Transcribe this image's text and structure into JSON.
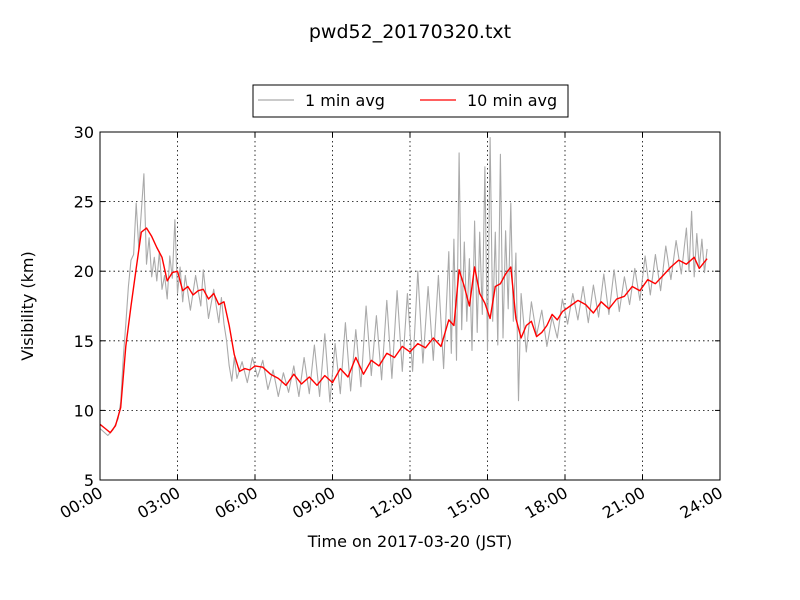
{
  "chart_data": {
    "type": "line",
    "title": "pwd52_20170320.txt",
    "xlabel": "Time on 2017-03-20 (JST)",
    "ylabel": "Visibility (km)",
    "xlim": [
      0,
      24
    ],
    "ylim": [
      5,
      30
    ],
    "x_ticks": [
      0,
      3,
      6,
      9,
      12,
      15,
      18,
      21,
      24
    ],
    "x_tick_labels": [
      "00:00",
      "03:00",
      "06:00",
      "09:00",
      "12:00",
      "15:00",
      "18:00",
      "21:00",
      "24:00"
    ],
    "y_ticks": [
      5,
      10,
      15,
      20,
      25,
      30
    ],
    "y_tick_labels": [
      "5",
      "10",
      "15",
      "20",
      "25",
      "30"
    ],
    "grid": true,
    "legend_position": "top-center",
    "series": [
      {
        "name": "1 min avg",
        "color": "#aaaaaa",
        "x": [
          0.0,
          0.3,
          0.5,
          0.7,
          0.8,
          0.9,
          1.0,
          1.1,
          1.2,
          1.3,
          1.4,
          1.5,
          1.7,
          1.8,
          1.9,
          2.0,
          2.1,
          2.2,
          2.3,
          2.4,
          2.5,
          2.6,
          2.7,
          2.8,
          2.9,
          3.0,
          3.1,
          3.2,
          3.3,
          3.5,
          3.7,
          3.9,
          4.0,
          4.2,
          4.4,
          4.6,
          4.7,
          4.8,
          4.9,
          5.0,
          5.1,
          5.2,
          5.3,
          5.5,
          5.7,
          5.9,
          6.1,
          6.3,
          6.5,
          6.7,
          6.9,
          7.1,
          7.3,
          7.5,
          7.7,
          7.9,
          8.1,
          8.3,
          8.5,
          8.7,
          8.9,
          9.1,
          9.3,
          9.5,
          9.7,
          9.9,
          10.1,
          10.3,
          10.5,
          10.7,
          10.9,
          11.1,
          11.3,
          11.5,
          11.7,
          11.9,
          12.1,
          12.3,
          12.5,
          12.7,
          12.9,
          13.1,
          13.3,
          13.5,
          13.6,
          13.7,
          13.8,
          13.9,
          14.0,
          14.1,
          14.2,
          14.3,
          14.4,
          14.5,
          14.6,
          14.7,
          14.8,
          14.9,
          15.0,
          15.1,
          15.2,
          15.3,
          15.4,
          15.5,
          15.6,
          15.7,
          15.8,
          15.9,
          16.0,
          16.1,
          16.2,
          16.3,
          16.5,
          16.7,
          16.9,
          17.1,
          17.3,
          17.5,
          17.7,
          17.9,
          18.1,
          18.3,
          18.5,
          18.7,
          18.9,
          19.1,
          19.3,
          19.5,
          19.7,
          19.9,
          20.1,
          20.3,
          20.5,
          20.7,
          20.9,
          21.1,
          21.3,
          21.5,
          21.7,
          21.9,
          22.1,
          22.3,
          22.5,
          22.7,
          22.8,
          22.9,
          23.0,
          23.1,
          23.2,
          23.3,
          23.4,
          23.5
        ],
        "y": [
          8.7,
          8.2,
          8.6,
          9.4,
          10.6,
          13.8,
          16.2,
          18.9,
          20.8,
          21.2,
          24.9,
          21.6,
          27.0,
          20.5,
          22.4,
          19.6,
          21.0,
          19.3,
          21.4,
          18.7,
          19.7,
          18.0,
          21.1,
          19.5,
          23.7,
          18.4,
          20.3,
          17.8,
          19.7,
          17.2,
          19.7,
          17.5,
          20.1,
          16.6,
          18.7,
          16.3,
          18.1,
          16.2,
          15.0,
          13.2,
          12.1,
          13.8,
          12.3,
          13.5,
          12.0,
          13.8,
          12.4,
          13.6,
          11.5,
          12.9,
          11.0,
          12.7,
          11.3,
          13.2,
          11.0,
          13.8,
          11.2,
          14.7,
          11.0,
          15.5,
          10.6,
          14.8,
          11.2,
          16.3,
          11.4,
          15.8,
          11.7,
          17.5,
          12.5,
          16.8,
          12.2,
          17.9,
          12.3,
          18.6,
          12.8,
          18.4,
          12.8,
          20.0,
          13.4,
          18.9,
          13.6,
          19.7,
          13.0,
          21.4,
          14.1,
          22.3,
          13.6,
          28.5,
          15.8,
          22.1,
          16.4,
          20.9,
          14.3,
          23.6,
          15.6,
          22.8,
          16.9,
          27.5,
          14.3,
          29.6,
          16.4,
          22.8,
          14.7,
          28.4,
          15.2,
          22.9,
          17.3,
          24.9,
          16.4,
          21.3,
          10.7,
          18.4,
          14.2,
          17.8,
          15.4,
          17.2,
          14.6,
          16.7,
          15.2,
          18.0,
          16.2,
          18.4,
          16.5,
          18.9,
          16.3,
          19.0,
          16.7,
          19.8,
          16.9,
          20.1,
          17.1,
          19.6,
          17.6,
          20.2,
          17.9,
          21.1,
          18.3,
          21.2,
          18.6,
          21.8,
          19.4,
          22.2,
          19.8,
          23.1,
          20.0,
          24.3,
          19.6,
          22.7,
          20.3,
          22.3,
          19.9,
          21.6
        ]
      },
      {
        "name": "10 min avg",
        "color": "#ff0000",
        "x": [
          0.0,
          0.2,
          0.4,
          0.6,
          0.8,
          1.0,
          1.2,
          1.4,
          1.6,
          1.8,
          2.0,
          2.2,
          2.4,
          2.6,
          2.8,
          3.0,
          3.2,
          3.4,
          3.6,
          3.8,
          4.0,
          4.2,
          4.4,
          4.6,
          4.8,
          5.0,
          5.2,
          5.4,
          5.6,
          5.8,
          6.0,
          6.3,
          6.6,
          6.9,
          7.2,
          7.5,
          7.8,
          8.1,
          8.4,
          8.7,
          9.0,
          9.3,
          9.6,
          9.9,
          10.2,
          10.5,
          10.8,
          11.1,
          11.4,
          11.7,
          12.0,
          12.3,
          12.6,
          12.9,
          13.2,
          13.5,
          13.7,
          13.9,
          14.1,
          14.3,
          14.5,
          14.7,
          14.9,
          15.1,
          15.3,
          15.5,
          15.7,
          15.9,
          16.1,
          16.3,
          16.5,
          16.7,
          16.9,
          17.1,
          17.3,
          17.5,
          17.7,
          17.9,
          18.2,
          18.5,
          18.8,
          19.1,
          19.4,
          19.7,
          20.0,
          20.3,
          20.6,
          20.9,
          21.2,
          21.5,
          21.8,
          22.1,
          22.4,
          22.7,
          23.0,
          23.2,
          23.5
        ],
        "y": [
          9.0,
          8.7,
          8.4,
          8.9,
          10.2,
          14.6,
          17.5,
          20.2,
          22.8,
          23.1,
          22.5,
          21.7,
          21.0,
          19.3,
          19.9,
          20.0,
          18.6,
          18.9,
          18.3,
          18.6,
          18.7,
          18.0,
          18.4,
          17.6,
          17.8,
          16.1,
          14.0,
          12.8,
          13.0,
          12.9,
          13.2,
          13.1,
          12.6,
          12.3,
          11.8,
          12.6,
          11.9,
          12.4,
          11.8,
          12.5,
          12.0,
          13.0,
          12.4,
          13.8,
          12.6,
          13.6,
          13.2,
          14.1,
          13.8,
          14.6,
          14.2,
          14.8,
          14.5,
          15.2,
          14.6,
          16.5,
          16.1,
          20.1,
          18.9,
          17.5,
          20.3,
          18.4,
          17.7,
          16.6,
          18.9,
          19.1,
          19.8,
          20.3,
          16.6,
          15.2,
          16.1,
          16.4,
          15.3,
          15.6,
          16.1,
          16.9,
          16.5,
          17.1,
          17.5,
          17.9,
          17.6,
          17.0,
          17.8,
          17.3,
          18.0,
          18.2,
          18.9,
          18.6,
          19.4,
          19.1,
          19.7,
          20.3,
          20.8,
          20.5,
          21.0,
          20.2,
          20.9
        ]
      }
    ]
  }
}
